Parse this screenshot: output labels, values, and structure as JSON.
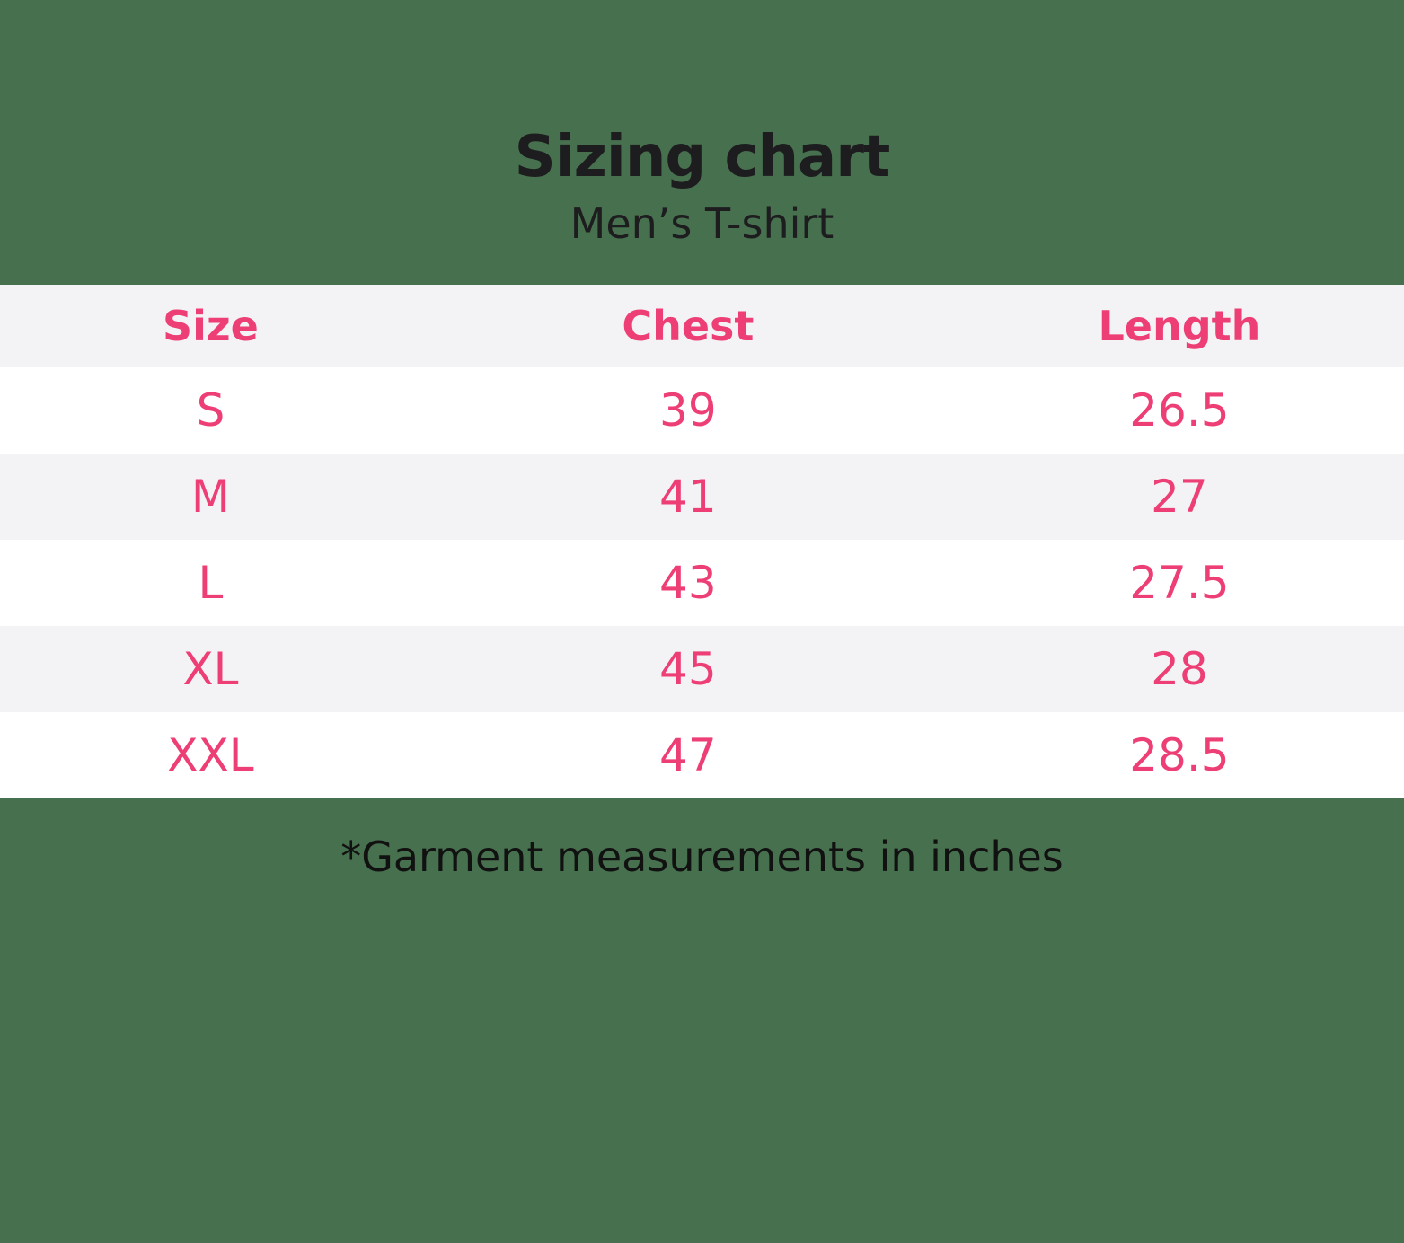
{
  "title": "Sizing chart",
  "subtitle": "Men’s T-shirt",
  "footnote": "*Garment measurements in inches",
  "colors": {
    "background_green": "#47704E",
    "accent_pink": "#ED3E75",
    "row_stripe": "#F3F3F5",
    "row_white": "#FFFFFF",
    "text_dark": "#1D1D1F"
  },
  "chart_data": {
    "type": "table",
    "title": "Sizing chart",
    "subtitle": "Men’s T-shirt",
    "columns": [
      "Size",
      "Chest",
      "Length"
    ],
    "rows": [
      [
        "S",
        "39",
        "26.5"
      ],
      [
        "M",
        "41",
        "27"
      ],
      [
        "L",
        "43",
        "27.5"
      ],
      [
        "XL",
        "45",
        "28"
      ],
      [
        "XXL",
        "47",
        "28.5"
      ]
    ],
    "note": "*Garment measurements in inches",
    "units": "inches",
    "layout": "striped-rows, header row light gray, pink text, centered columns"
  }
}
